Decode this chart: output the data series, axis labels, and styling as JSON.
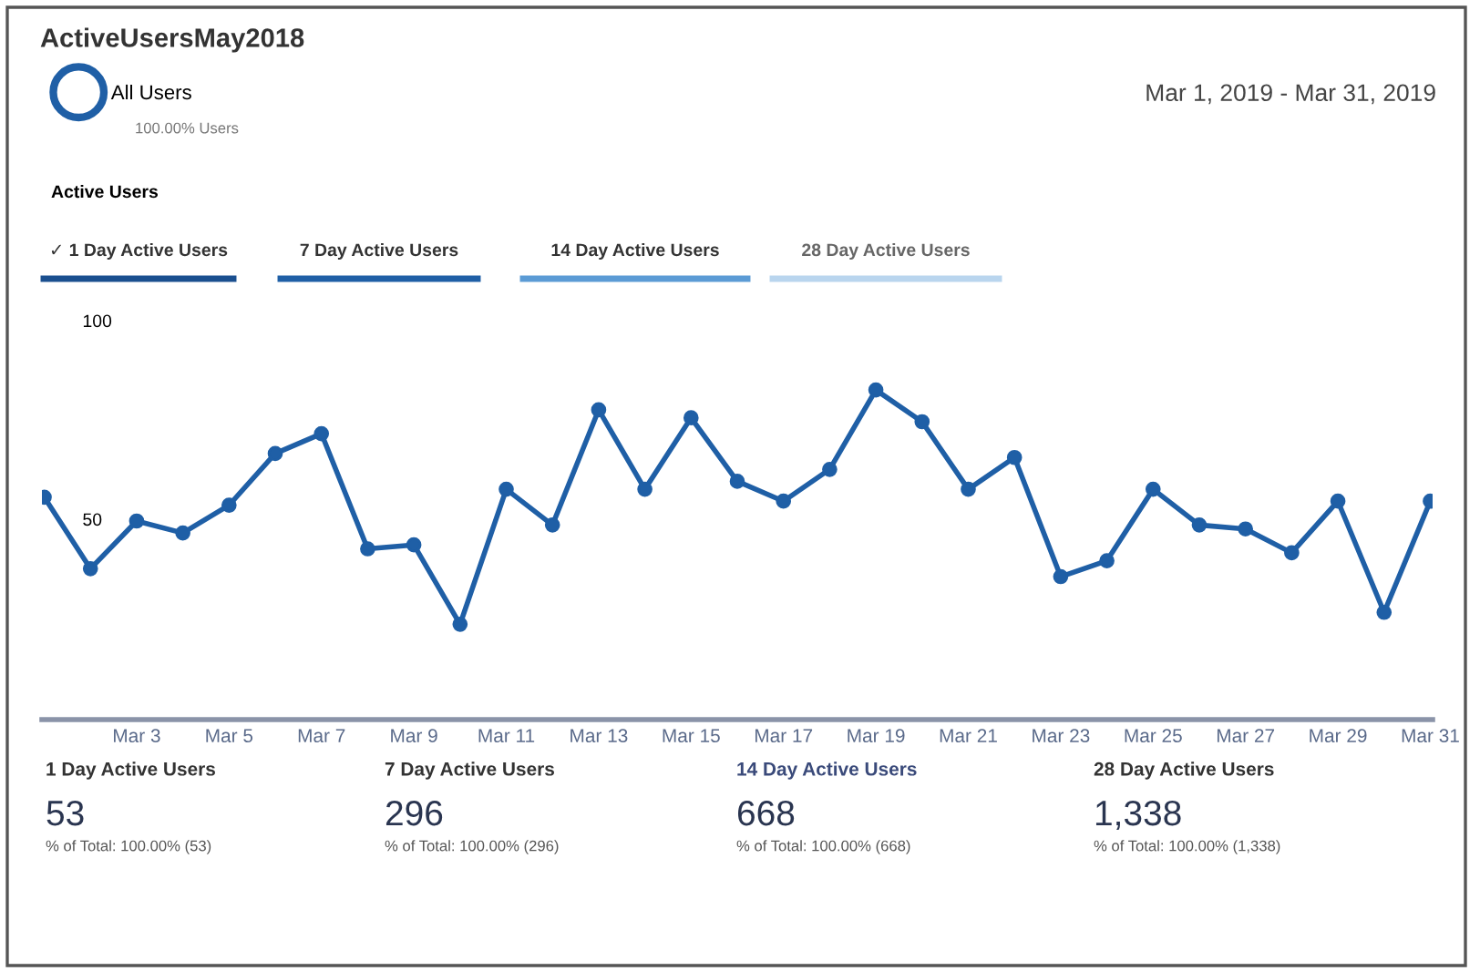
{
  "chart_data": {
    "type": "line",
    "title": "ActiveUsersMay2018",
    "subtitle": "Mar 1, 2019 - Mar 31, 2019",
    "categories": [
      null,
      null,
      "Mar 3",
      null,
      "Mar 5",
      null,
      "Mar 7",
      null,
      "Mar 9",
      null,
      "Mar 11",
      null,
      "Mar 13",
      null,
      "Mar 15",
      null,
      "Mar 17",
      null,
      "Mar 19",
      null,
      "Mar 21",
      null,
      "Mar 23",
      null,
      "Mar 25",
      null,
      "Mar 27",
      null,
      "Mar 29",
      null,
      "Mar 31"
    ],
    "series": [
      {
        "name": "All Users",
        "color": "#1f5fa6",
        "values": [
          56,
          38,
          50,
          47,
          54,
          67,
          72,
          43,
          44,
          24,
          58,
          49,
          78,
          58,
          76,
          60,
          55,
          63,
          83,
          75,
          58,
          66,
          36,
          40,
          58,
          49,
          48,
          42,
          55,
          27,
          55
        ]
      }
    ],
    "ylim": [
      0,
      100
    ],
    "yticks": [
      50,
      100
    ],
    "grid": false,
    "legend": "top left",
    "marker": "circle",
    "line_style": "solid",
    "tick_labels": "xy",
    "annotations": [
      "100.00% Users",
      "Active Users",
      "✓ 1 Day Active Users",
      "7 Day Active Users",
      "14 Day Active Users",
      "28 Day Active Users",
      "1 Day Active Users",
      "53",
      "% of Total: 100.00% (53)",
      "7 Day Active Users",
      "296",
      "% of Total: 100.00% (296)",
      "14 Day Active Users",
      "668",
      "% of Total: 100.00% (668)",
      "28 Day Active Users",
      "1,338",
      "% of Total: 100.00% (1,338)"
    ]
  }
}
